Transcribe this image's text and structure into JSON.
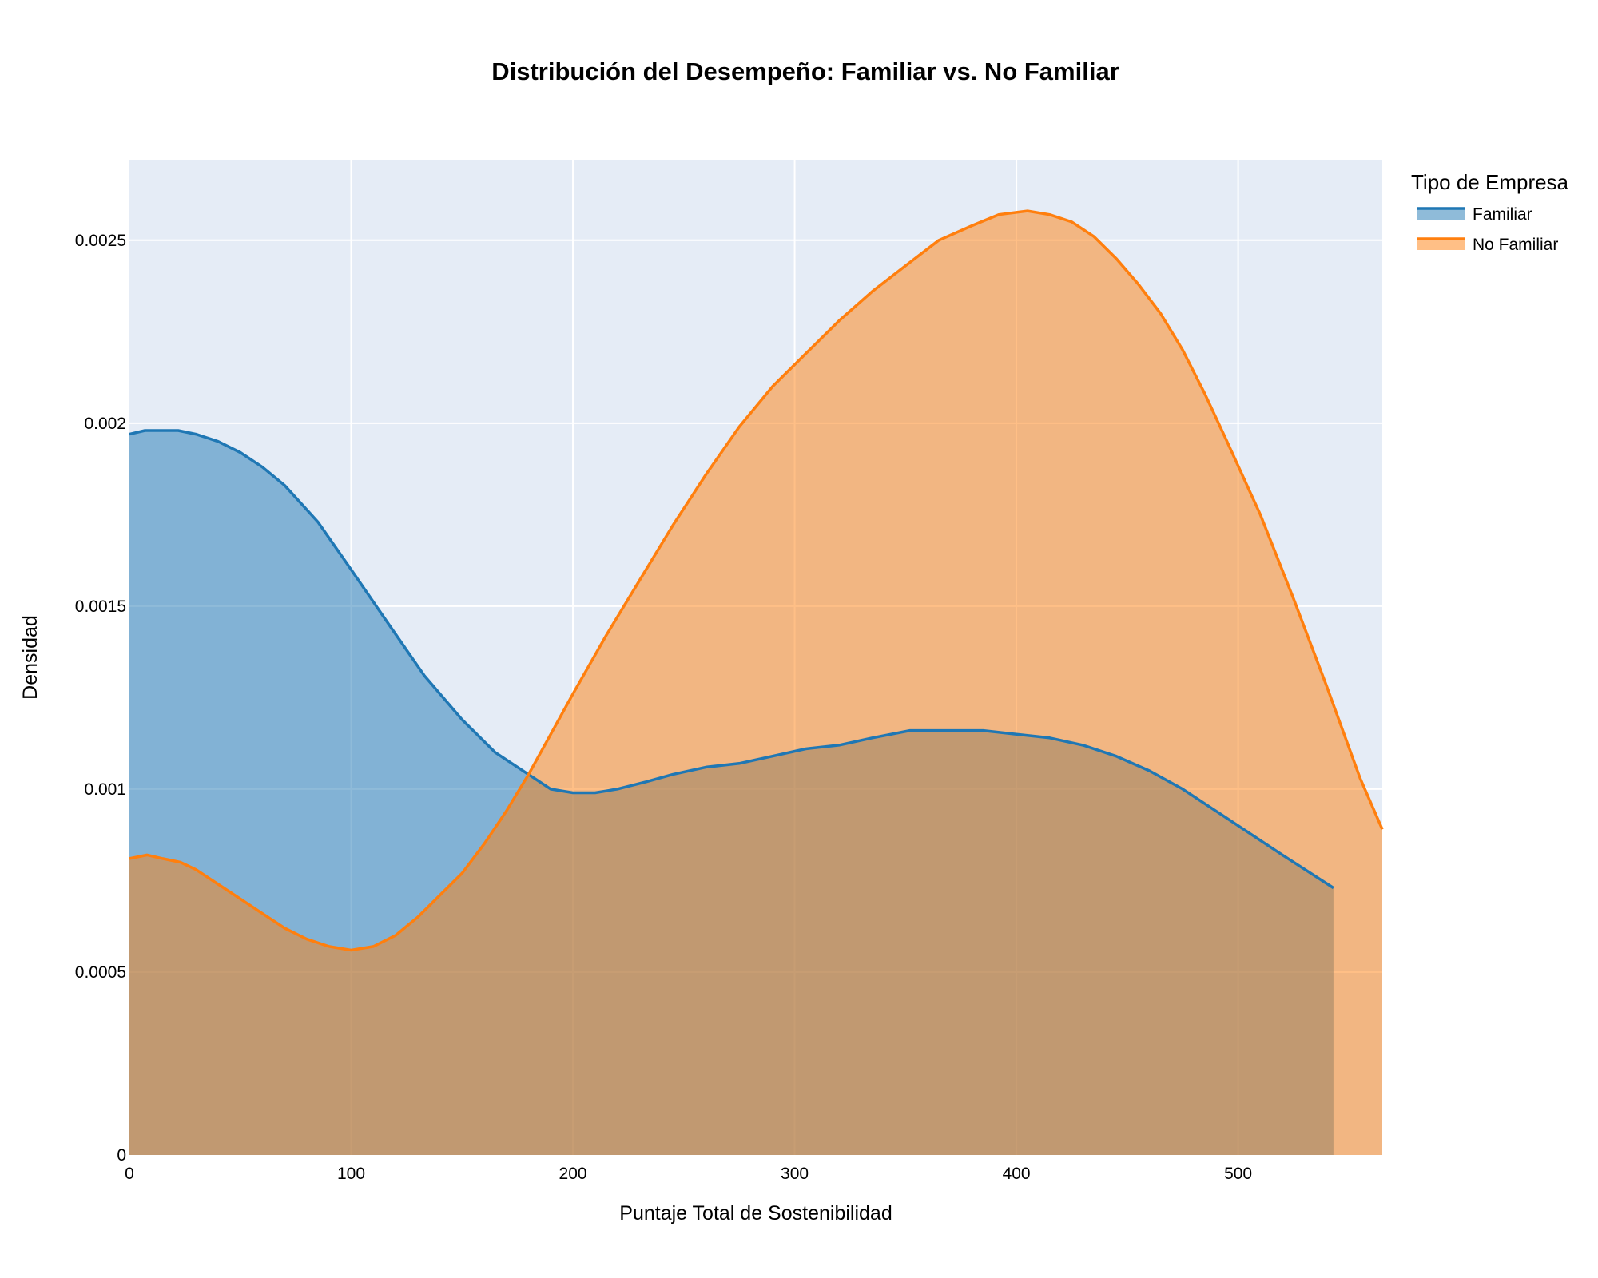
{
  "chart_data": {
    "type": "area",
    "title": "Distribución del Desempeño: Familiar vs. No Familiar",
    "xlabel": "Puntaje Total de Sostenibilidad",
    "ylabel": "Densidad",
    "xlim": [
      0,
      565
    ],
    "ylim": [
      0,
      0.00272
    ],
    "x_ticks": [
      0,
      100,
      200,
      300,
      400,
      500
    ],
    "x_tick_labels": [
      "0",
      "100",
      "200",
      "300",
      "400",
      "500"
    ],
    "y_ticks": [
      0,
      0.0005,
      0.001,
      0.0015,
      0.002,
      0.0025
    ],
    "y_tick_labels": [
      "0",
      "0.0005",
      "0.001",
      "0.0015",
      "0.002",
      "0.0025"
    ],
    "grid": true,
    "legend": {
      "title": "Tipo de Empresa",
      "placement": "right"
    },
    "series": [
      {
        "name": "Familiar",
        "color": "#1f77b4",
        "fill": "rgba(31,119,180,0.5)",
        "x": [
          0,
          7,
          15,
          22,
          30,
          40,
          50,
          60,
          70,
          85,
          100,
          117,
          133,
          150,
          165,
          180,
          190,
          200,
          210,
          220,
          233,
          245,
          260,
          275,
          290,
          305,
          320,
          335,
          352,
          370,
          385,
          400,
          415,
          430,
          445,
          460,
          475,
          490,
          505,
          520,
          543
        ],
        "y": [
          0.00197,
          0.00198,
          0.00198,
          0.00198,
          0.00197,
          0.00195,
          0.00192,
          0.00188,
          0.00183,
          0.00173,
          0.0016,
          0.00145,
          0.00131,
          0.00119,
          0.0011,
          0.00104,
          0.001,
          0.00099,
          0.00099,
          0.001,
          0.00102,
          0.00104,
          0.00106,
          0.00107,
          0.00109,
          0.00111,
          0.00112,
          0.00114,
          0.00116,
          0.00116,
          0.00116,
          0.00115,
          0.00114,
          0.00112,
          0.00109,
          0.00105,
          0.001,
          0.00094,
          0.00088,
          0.00082,
          0.00073
        ]
      },
      {
        "name": "No Familiar",
        "color": "#ff7f0e",
        "fill": "rgba(255,127,14,0.5)",
        "x": [
          0,
          8,
          15,
          23,
          30,
          40,
          50,
          60,
          70,
          80,
          90,
          100,
          110,
          120,
          130,
          140,
          150,
          160,
          170,
          180,
          190,
          200,
          215,
          230,
          245,
          260,
          275,
          290,
          305,
          320,
          335,
          350,
          365,
          380,
          392,
          405,
          415,
          425,
          435,
          445,
          455,
          465,
          475,
          485,
          495,
          510,
          525,
          540,
          555,
          565
        ],
        "y": [
          0.00081,
          0.00082,
          0.00081,
          0.0008,
          0.00078,
          0.00074,
          0.0007,
          0.00066,
          0.00062,
          0.00059,
          0.00057,
          0.00056,
          0.00057,
          0.0006,
          0.00065,
          0.00071,
          0.00077,
          0.00085,
          0.00094,
          0.00104,
          0.00115,
          0.00126,
          0.00142,
          0.00157,
          0.00172,
          0.00186,
          0.00199,
          0.0021,
          0.00219,
          0.00228,
          0.00236,
          0.00243,
          0.0025,
          0.00254,
          0.00257,
          0.00258,
          0.00257,
          0.00255,
          0.00251,
          0.00245,
          0.00238,
          0.0023,
          0.0022,
          0.00208,
          0.00195,
          0.00175,
          0.00152,
          0.00128,
          0.00103,
          0.00089
        ]
      }
    ]
  }
}
